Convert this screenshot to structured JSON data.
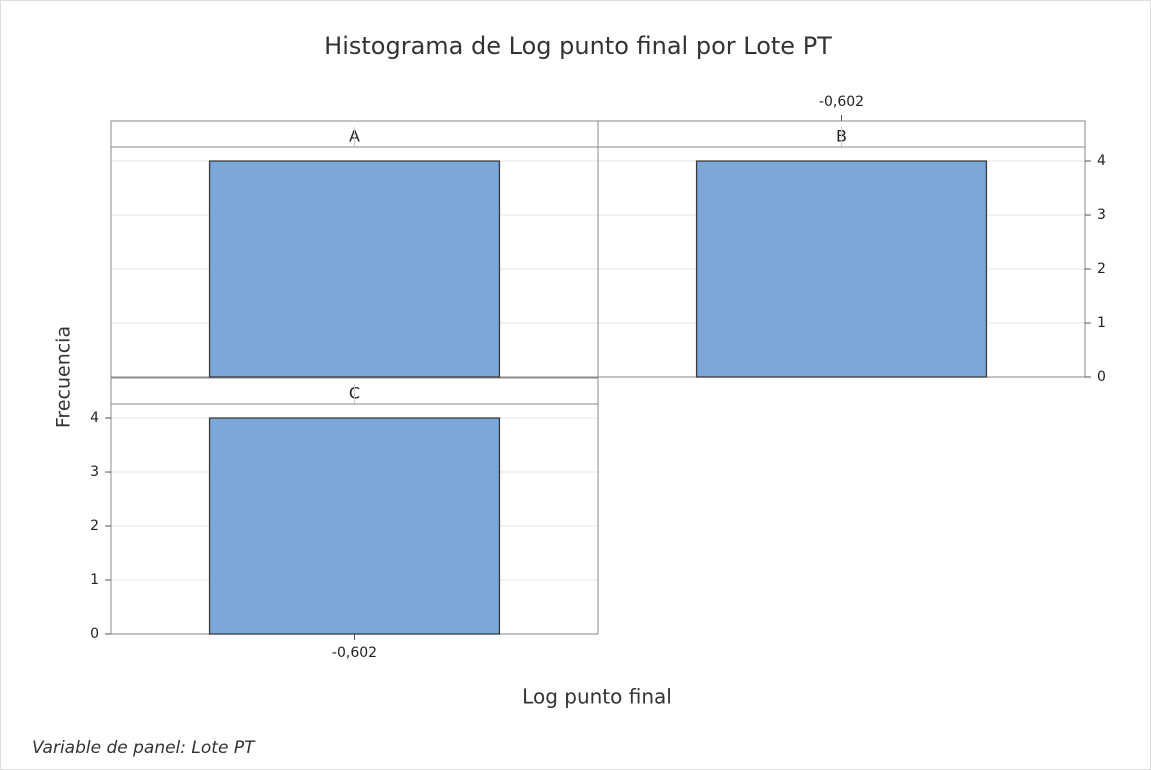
{
  "chart_data": {
    "type": "histogram",
    "title": "Histograma de Log punto final por Lote PT",
    "xlabel": "Log punto final",
    "ylabel": "Frecuencia",
    "footnote": "Variable de panel: Lote PT",
    "color": "#7ba7d9",
    "xlim": [
      -0.686,
      -0.518
    ],
    "xticks": [
      {
        "value": -0.602,
        "label": "-0,602"
      }
    ],
    "ylim": [
      0,
      4.26
    ],
    "yticks": [
      0,
      1,
      2,
      3,
      4
    ],
    "grid": true,
    "panels": [
      {
        "name": "A",
        "bins": [
          -0.652,
          -0.552
        ],
        "values": [
          4
        ]
      },
      {
        "name": "B",
        "bins": [
          -0.652,
          -0.552
        ],
        "values": [
          4
        ]
      },
      {
        "name": "C",
        "bins": [
          -0.652,
          -0.552
        ],
        "values": [
          4
        ]
      }
    ]
  }
}
